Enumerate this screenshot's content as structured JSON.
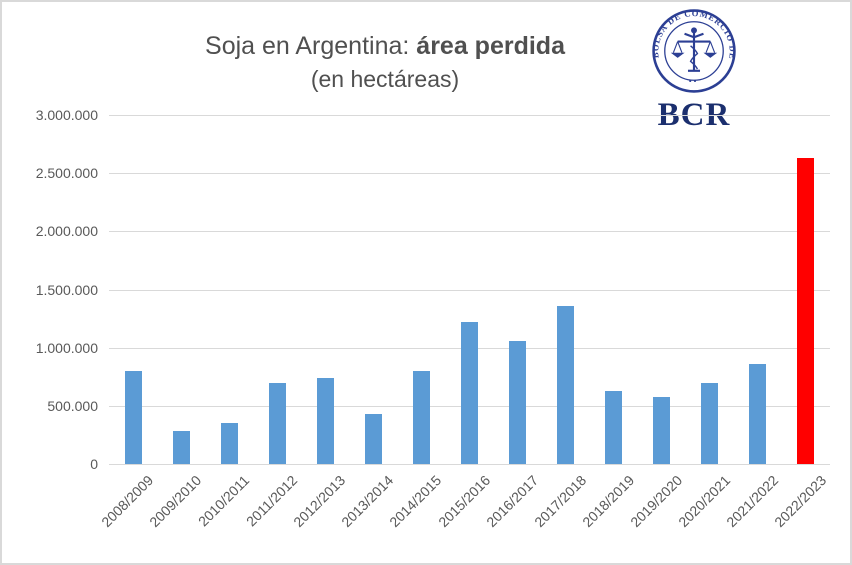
{
  "title": {
    "line1_regular": "Soja en Argentina: ",
    "line1_bold": "área perdida",
    "line2": "(en hectáreas)"
  },
  "logo": {
    "seal_text": "BOLSA DE COMERCIO DE ROSARIO",
    "acronym": "BCR",
    "seal_color": "#2c3f94",
    "acronym_color": "#1b2f6e"
  },
  "chart_data": {
    "type": "bar",
    "title": "Soja en Argentina: área perdida (en hectáreas)",
    "categories": [
      "2008/2009",
      "2009/2010",
      "2010/2011",
      "2011/2012",
      "2012/2013",
      "2013/2014",
      "2014/2015",
      "2015/2016",
      "2016/2017",
      "2017/2018",
      "2018/2019",
      "2019/2020",
      "2020/2021",
      "2021/2022",
      "2022/2023"
    ],
    "values": [
      800000,
      280000,
      350000,
      700000,
      740000,
      430000,
      800000,
      1220000,
      1060000,
      1360000,
      630000,
      580000,
      700000,
      860000,
      2630000
    ],
    "xlabel": "",
    "ylabel": "",
    "ylim": [
      0,
      3000000
    ],
    "y_tick_values": [
      0,
      500000,
      1000000,
      1500000,
      2000000,
      2500000,
      3000000
    ],
    "y_ticks": [
      "0",
      "500.000",
      "1.000.000",
      "1.500.000",
      "2.000.000",
      "2.500.000",
      "3.000.000"
    ],
    "grid": "horizontal",
    "legend": "none",
    "default_color": "#5B9BD5",
    "highlight_color": "#FF0000",
    "highlight_index": 14,
    "gridline_color": "#d9d9d9",
    "axis_label_color": "#595959"
  }
}
